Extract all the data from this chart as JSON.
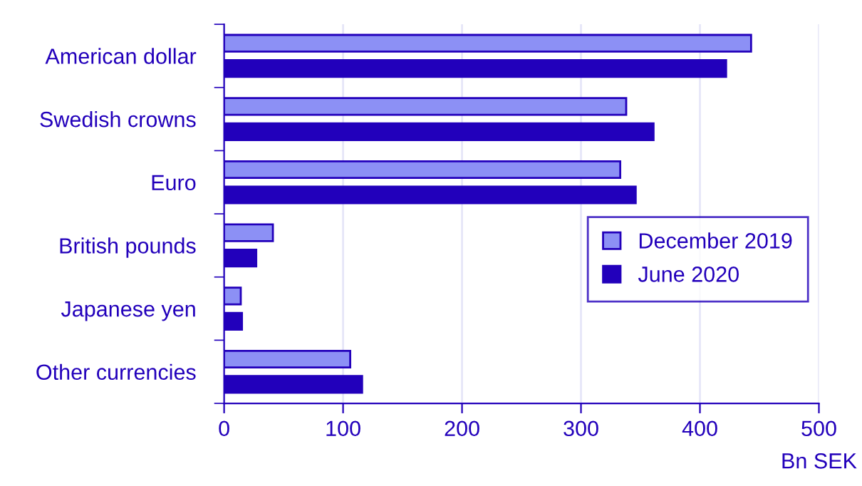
{
  "chart_data": {
    "type": "bar",
    "orientation": "horizontal",
    "xlabel": "Bn SEK",
    "categories": [
      "American dollar",
      "Swedish crowns",
      "Euro",
      "British pounds",
      "Japanese yen",
      "Other currencies"
    ],
    "series": [
      {
        "name": "December 2019",
        "color": "#8c90f5",
        "values": [
          443,
          338,
          333,
          41,
          14,
          106
        ]
      },
      {
        "name": "June 2020",
        "color": "#2200bb",
        "values": [
          422,
          361,
          346,
          27,
          15,
          116
        ]
      }
    ],
    "xlim": [
      0,
      500
    ],
    "xticks": [
      0,
      100,
      200,
      300,
      400,
      500
    ],
    "grid": "x",
    "legend": "right"
  }
}
